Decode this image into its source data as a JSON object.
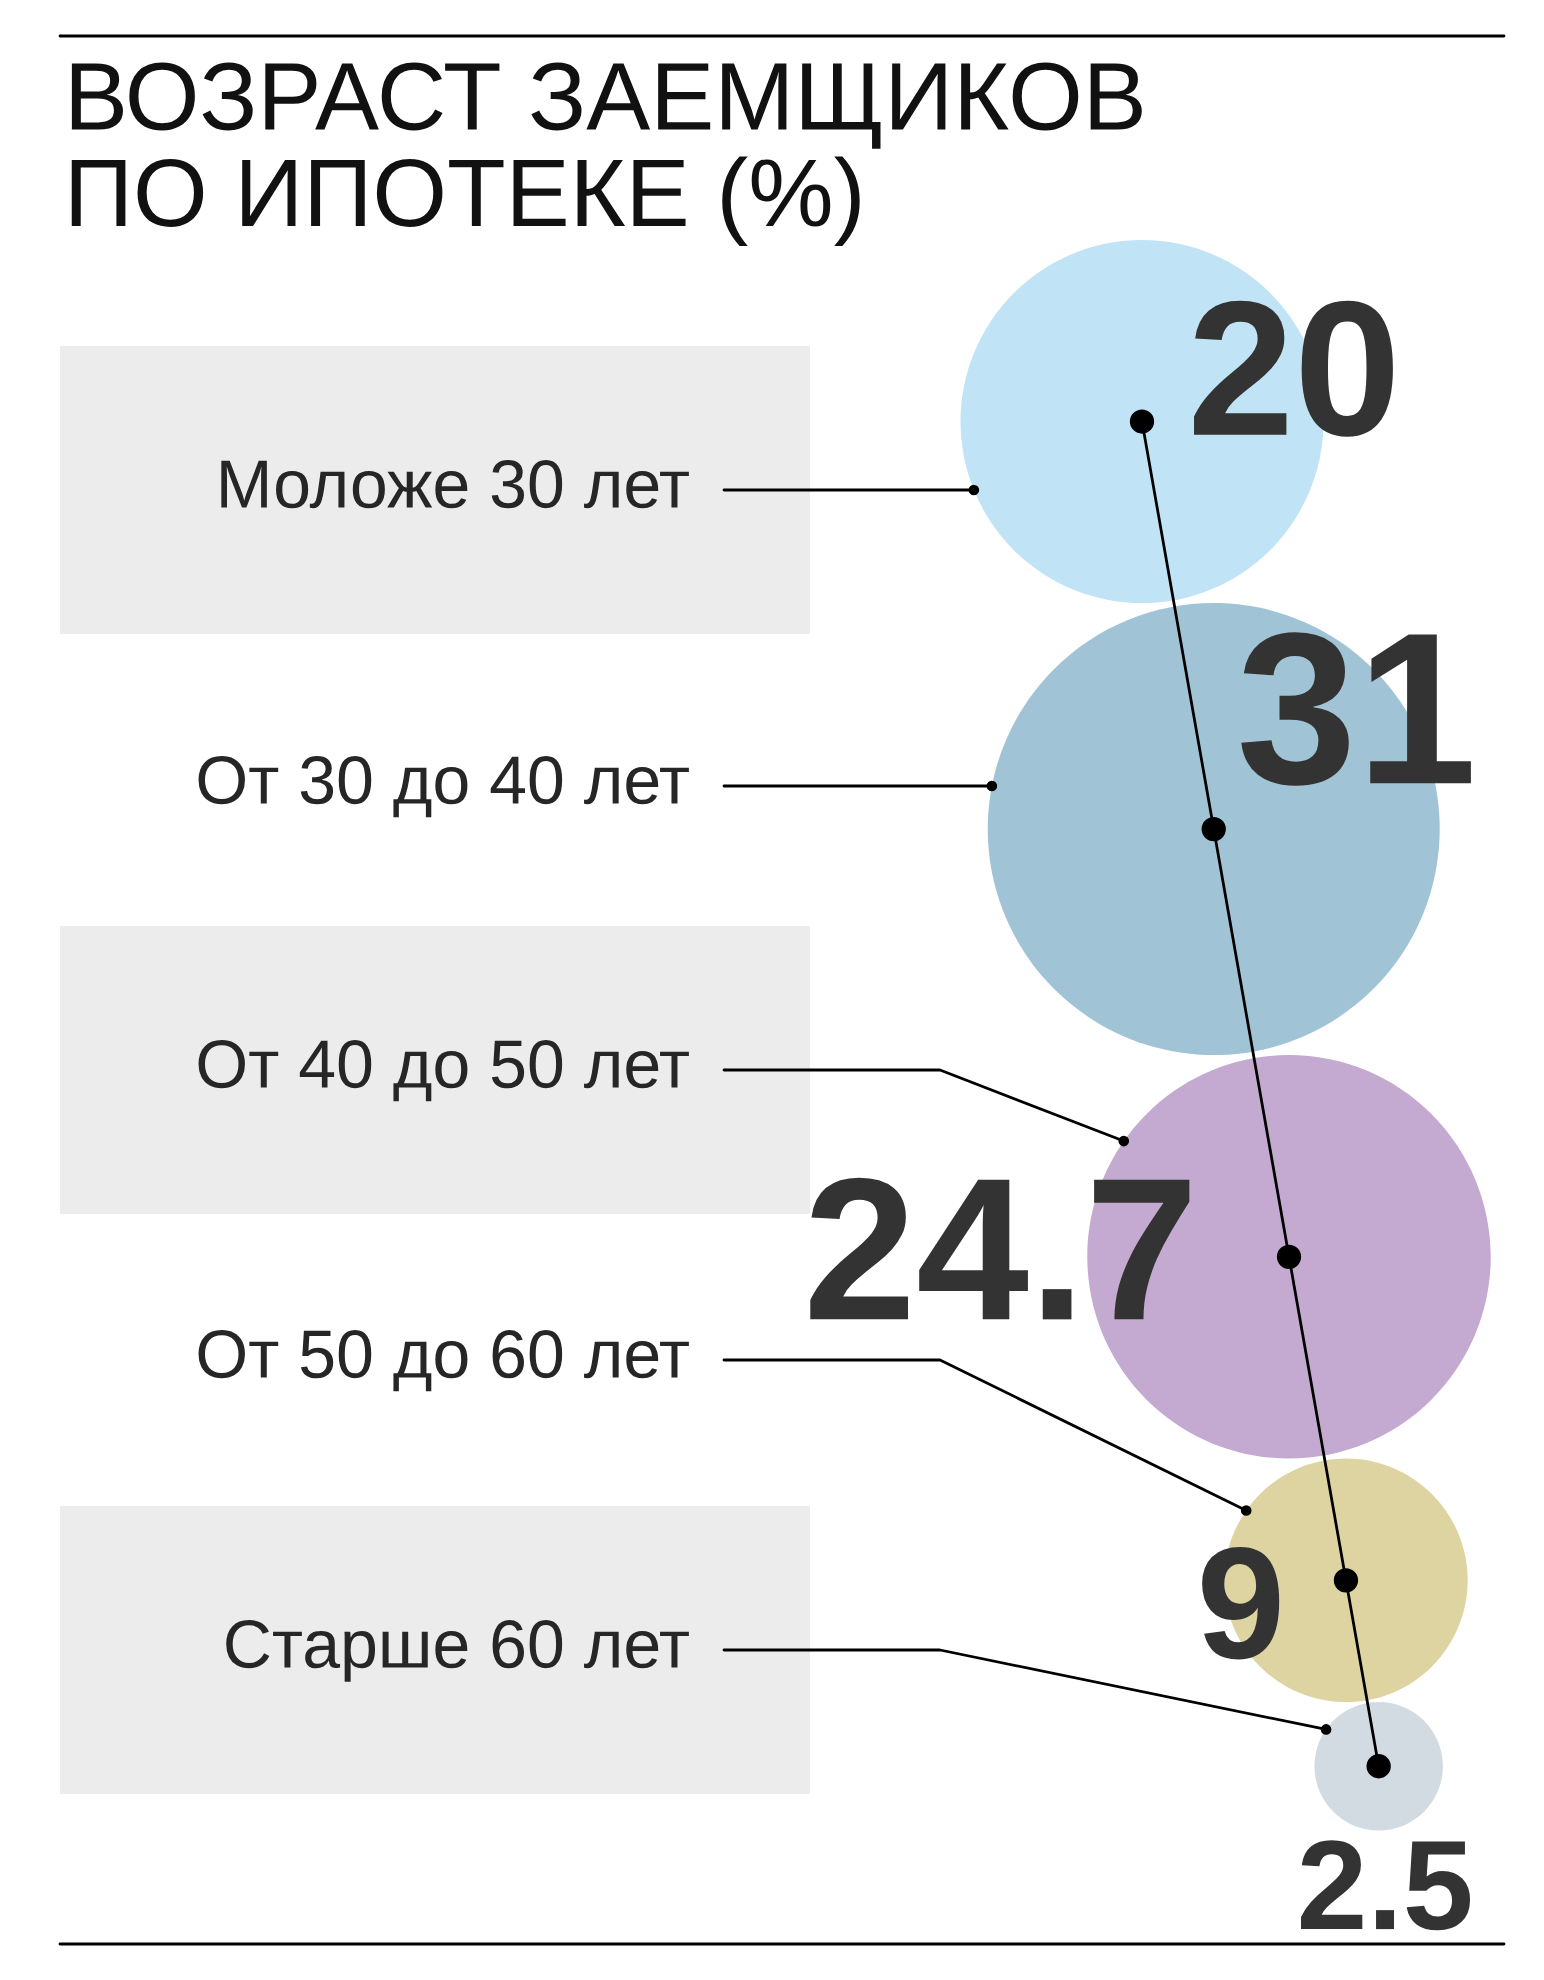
{
  "chart_data": {
    "type": "other",
    "title": "ВОЗРАСТ ЗАЕМЩИКОВ\nПО ИПОТЕКЕ (%)",
    "categories": [
      "Моложе 30 лет",
      "От 30 до 40 лет",
      "От 40 до 50 лет",
      "От 50 до 60 лет",
      "Старше 60 лет"
    ],
    "values": [
      20,
      31,
      24.7,
      9,
      2.5
    ],
    "colors": [
      "#c0e4f6",
      "#a0c4d6",
      "#c4a9d0",
      "#ddd4a2",
      "#d2dae2"
    ],
    "data_labels": true
  }
}
